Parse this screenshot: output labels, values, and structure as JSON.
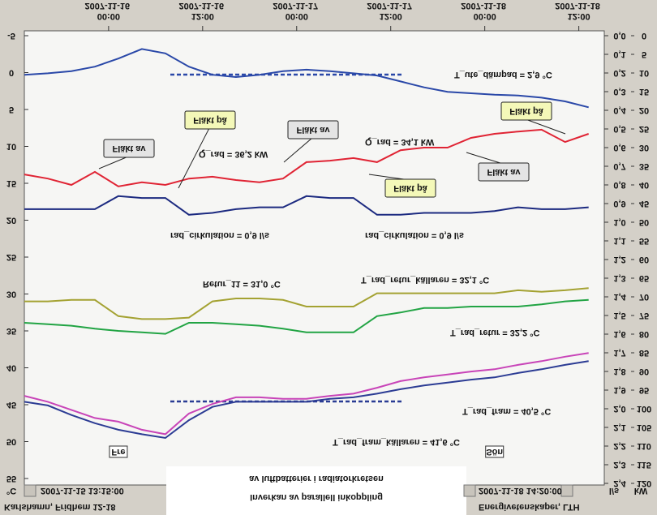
{
  "chart_data": {
    "type": "line",
    "title": "Inverkan av parallell inkoppling",
    "subtitle": "av luftbatterier i radiatorkretsen",
    "source": "Karlshamn, Fridhem 12-18",
    "credit": "Energivetenskaper, LTH",
    "start": "2007-11-15 13:15:00",
    "end": "2007-11-18 14:20:00",
    "ylabel": "°C",
    "y2label": "l/s",
    "y3label": "kW",
    "xlim": [
      0,
      74
    ],
    "xticks": [
      {
        "value": 10.75,
        "label": "2007-11-16 00:00"
      },
      {
        "value": 22.75,
        "label": "2007-11-16 12:00"
      },
      {
        "value": 34.75,
        "label": "2007-11-17 00:00"
      },
      {
        "value": 46.75,
        "label": "2007-11-17 12:00"
      },
      {
        "value": 58.75,
        "label": "2007-11-18 00:00"
      },
      {
        "value": 70.75,
        "label": "2007-11-18 12:00"
      }
    ],
    "day_labels": [
      {
        "label": "Fre",
        "x": 12
      },
      {
        "label": "Sön",
        "x": 60
      }
    ],
    "ylim": [
      -5,
      55
    ],
    "yticks": [
      -5,
      0,
      5,
      10,
      15,
      20,
      25,
      30,
      35,
      40,
      45,
      50,
      55
    ],
    "y2lim": [
      0,
      2.4
    ],
    "y2ticks": [
      {
        "value": 0,
        "label": "0,0"
      },
      {
        "value": 0.1,
        "label": "0,1"
      },
      {
        "value": 0.2,
        "label": "0,2"
      },
      {
        "value": 0.3,
        "label": "0,3"
      },
      {
        "value": 0.4,
        "label": "0,4"
      },
      {
        "value": 0.5,
        "label": "0,5"
      },
      {
        "value": 0.6,
        "label": "0,6"
      },
      {
        "value": 0.7,
        "label": "0,7"
      },
      {
        "value": 0.8,
        "label": "0,8"
      },
      {
        "value": 0.9,
        "label": "0,9"
      },
      {
        "value": 1.0,
        "label": "1,0"
      },
      {
        "value": 1.1,
        "label": "1,1"
      },
      {
        "value": 1.2,
        "label": "1,2"
      },
      {
        "value": 1.3,
        "label": "1,3"
      },
      {
        "value": 1.4,
        "label": "1,4"
      },
      {
        "value": 1.5,
        "label": "1,5"
      },
      {
        "value": 1.6,
        "label": "1,6"
      },
      {
        "value": 1.7,
        "label": "1,7"
      },
      {
        "value": 1.8,
        "label": "1,8"
      },
      {
        "value": 1.9,
        "label": "1,9"
      },
      {
        "value": 2.0,
        "label": "2,0"
      },
      {
        "value": 2.1,
        "label": "2,1"
      },
      {
        "value": 2.2,
        "label": "2,2"
      },
      {
        "value": 2.3,
        "label": "2,3"
      },
      {
        "value": 2.4,
        "label": "2,4"
      }
    ],
    "y3lim": [
      0,
      120
    ],
    "y3ticks": [
      0,
      5,
      10,
      15,
      20,
      25,
      30,
      35,
      40,
      45,
      50,
      55,
      60,
      65,
      70,
      75,
      80,
      85,
      90,
      95,
      100,
      105,
      110,
      115,
      120
    ],
    "x": [
      0,
      3,
      6,
      9,
      12,
      15,
      18,
      21,
      24,
      27,
      30,
      33,
      36,
      39,
      42,
      45,
      48,
      51,
      54,
      57,
      60,
      63,
      66,
      69,
      72
    ],
    "series": [
      {
        "color": "#2a48a8",
        "axis": "y",
        "labels": [
          "T_ute_dämpad = 2,9 °C"
        ],
        "values": [
          0.3,
          0.1,
          -0.2,
          -0.8,
          -1.9,
          -3.2,
          -2.6,
          -0.8,
          0.3,
          0.6,
          0.3,
          -0.2,
          -0.4,
          -0.2,
          0.1,
          0.4,
          1.2,
          2.0,
          2.6,
          2.8,
          3.0,
          3.1,
          3.4,
          3.9,
          4.7
        ]
      },
      {
        "color": "#e02434",
        "axis": "y3",
        "labels": [
          "Q_rad = 36,2 kW",
          "Q_rad = 34,1 kW"
        ],
        "values": [
          37.2,
          38.3,
          40.0,
          36.5,
          40.4,
          39.3,
          40.0,
          38.3,
          37.8,
          38.7,
          39.3,
          38.3,
          33.9,
          33.5,
          32.8,
          33.9,
          30.7,
          30.0,
          30.0,
          27.4,
          26.3,
          25.7,
          25.2,
          28.5,
          26.3
        ]
      },
      {
        "color": "#1c2a80",
        "axis": "y2",
        "labels": [
          "rad_cirkulation = 0,9 l/s",
          "rad_cirkulation = 0,9 l/s"
        ],
        "values": [
          0.93,
          0.93,
          0.93,
          0.93,
          0.86,
          0.87,
          0.87,
          0.96,
          0.95,
          0.93,
          0.92,
          0.92,
          0.86,
          0.87,
          0.87,
          0.96,
          0.96,
          0.95,
          0.95,
          0.95,
          0.94,
          0.92,
          0.93,
          0.93,
          0.92
        ]
      },
      {
        "color": "#a4a232",
        "axis": "y",
        "labels": [
          "Retur_11 = 31,0 °C"
        ],
        "values": [
          31.0,
          31.0,
          30.8,
          30.8,
          33.0,
          33.4,
          33.4,
          33.2,
          31.0,
          30.6,
          30.6,
          30.8,
          31.7,
          31.7,
          31.7,
          29.9,
          29.9,
          29.9,
          29.9,
          29.9,
          29.9,
          29.5,
          29.7,
          29.5,
          29.2
        ]
      },
      {
        "color": "#22a444",
        "axis": "y",
        "labels": [
          "T_rad_retur = 32,2 °C"
        ],
        "values": [
          33.9,
          34.1,
          34.3,
          34.7,
          35.0,
          35.2,
          35.4,
          33.9,
          33.9,
          34.1,
          34.3,
          34.7,
          35.2,
          35.2,
          35.2,
          33.0,
          32.5,
          31.9,
          31.9,
          31.7,
          31.7,
          31.7,
          31.4,
          31.0,
          30.8
        ]
      },
      {
        "color": "#c844b8",
        "axis": "y",
        "labels": [
          "T_rad_fram = 40,5 °C"
        ],
        "values": [
          43.8,
          44.6,
          45.7,
          46.8,
          47.3,
          48.4,
          49.0,
          46.2,
          44.9,
          44.0,
          44.0,
          44.2,
          44.2,
          43.8,
          43.5,
          42.7,
          41.8,
          41.3,
          40.9,
          40.5,
          40.2,
          39.6,
          39.1,
          38.5,
          38.0
        ]
      },
      {
        "color": "#2c3c94",
        "axis": "y",
        "labels": [
          "T_rad_fram_källaren = 41,6 °C",
          "T_rad_retur_källaren = 32,1 °C"
        ],
        "values": [
          44.6,
          45.1,
          46.4,
          47.5,
          48.4,
          49.0,
          49.5,
          47.1,
          45.3,
          44.6,
          44.6,
          44.6,
          44.6,
          44.2,
          44.0,
          43.5,
          42.9,
          42.4,
          42.0,
          41.6,
          41.3,
          40.7,
          40.2,
          39.6,
          39.1
        ]
      }
    ],
    "callouts": [
      "Fläkt av",
      "Fläkt på",
      "Fläkt av",
      "Fläkt på",
      "Fläkt av",
      "Fläkt på"
    ]
  }
}
